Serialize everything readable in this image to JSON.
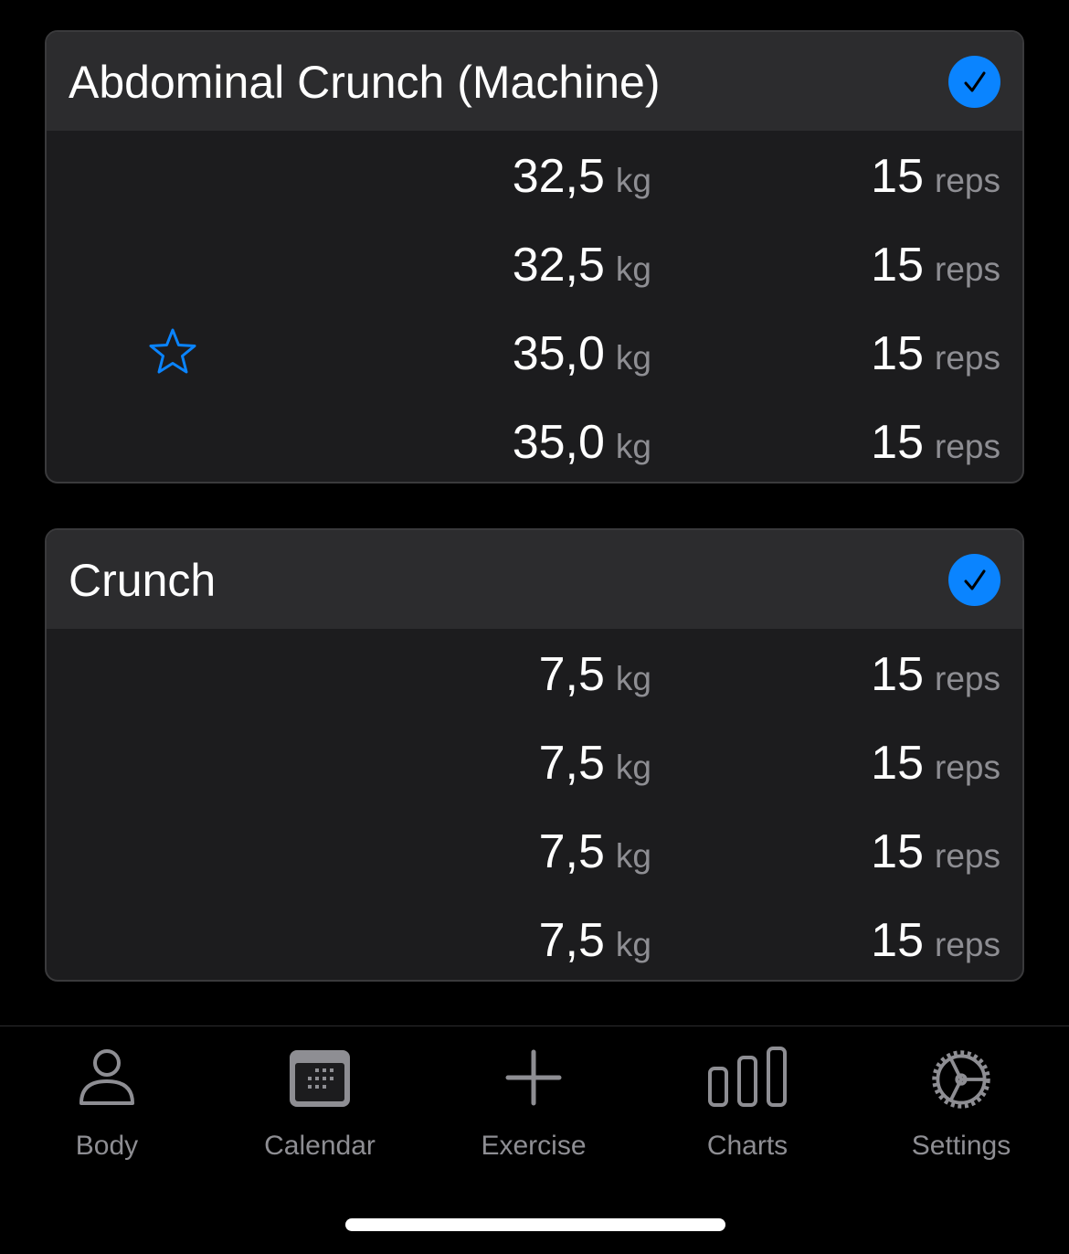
{
  "accent": "#0a84ff",
  "exercises": [
    {
      "name": "Abdominal Crunch (Machine)",
      "completed": true,
      "sets": [
        {
          "weight": "32,5",
          "unit": "kg",
          "reps": "15",
          "reps_unit": "reps",
          "record": false
        },
        {
          "weight": "32,5",
          "unit": "kg",
          "reps": "15",
          "reps_unit": "reps",
          "record": false
        },
        {
          "weight": "35,0",
          "unit": "kg",
          "reps": "15",
          "reps_unit": "reps",
          "record": true
        },
        {
          "weight": "35,0",
          "unit": "kg",
          "reps": "15",
          "reps_unit": "reps",
          "record": false
        }
      ]
    },
    {
      "name": "Crunch",
      "completed": true,
      "sets": [
        {
          "weight": "7,5",
          "unit": "kg",
          "reps": "15",
          "reps_unit": "reps",
          "record": false
        },
        {
          "weight": "7,5",
          "unit": "kg",
          "reps": "15",
          "reps_unit": "reps",
          "record": false
        },
        {
          "weight": "7,5",
          "unit": "kg",
          "reps": "15",
          "reps_unit": "reps",
          "record": false
        },
        {
          "weight": "7,5",
          "unit": "kg",
          "reps": "15",
          "reps_unit": "reps",
          "record": false
        }
      ]
    }
  ],
  "tabs": [
    {
      "label": "Body",
      "icon": "person-icon"
    },
    {
      "label": "Calendar",
      "icon": "calendar-icon"
    },
    {
      "label": "Exercise",
      "icon": "plus-icon"
    },
    {
      "label": "Charts",
      "icon": "chart-bars-icon"
    },
    {
      "label": "Settings",
      "icon": "gear-icon"
    }
  ]
}
